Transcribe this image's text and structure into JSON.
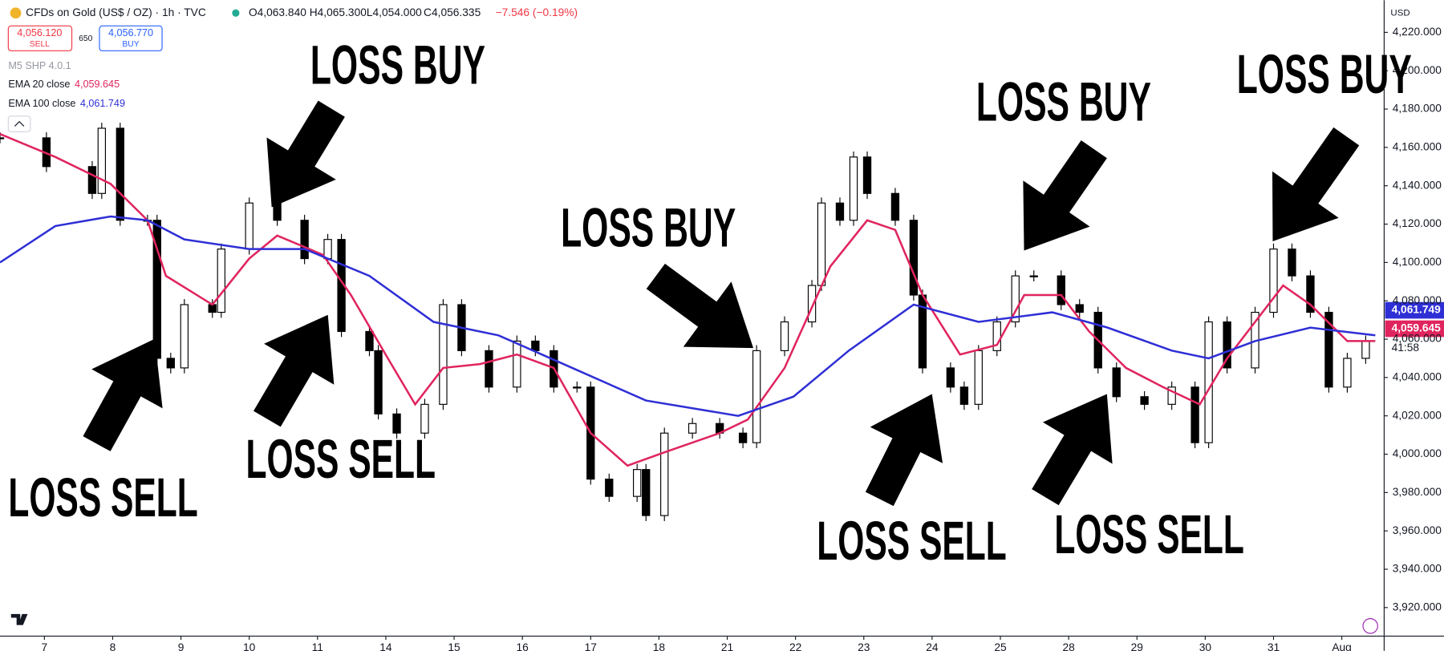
{
  "header": {
    "symbol": "CFDs on Gold (US$ / OZ) · 1h · TVC",
    "open": "O4,063.840",
    "high": "H4,065.300",
    "low": "L4,054.000",
    "close": "C4,056.335",
    "change": "−7.546 (−0.19%)"
  },
  "trade": {
    "sell_price": "4,056.120",
    "sell": "SELL",
    "spread": "650",
    "buy_price": "4,056.770",
    "buy": "BUY"
  },
  "indicator": "M5 SHP 4.0.1",
  "chart_data": {
    "type": "candlestick",
    "x": [
      -0.65,
      0.03,
      0.7,
      0.84,
      1.11,
      1.51,
      1.65,
      1.85,
      2.05,
      2.46,
      2.59,
      3.0,
      3.41,
      3.81,
      4.15,
      4.35,
      4.76,
      4.89,
      5.16,
      5.57,
      5.84,
      6.11,
      6.51,
      6.92,
      7.19,
      7.46,
      7.8,
      8.0,
      8.27,
      8.68,
      8.81,
      9.08,
      9.49,
      9.89,
      10.23,
      10.43,
      10.84,
      11.24,
      11.38,
      11.65,
      11.85,
      12.05,
      12.46,
      12.73,
      12.86,
      13.27,
      13.47,
      13.68,
      13.95,
      14.22,
      14.49,
      14.89,
      15.16,
      15.43,
      15.7,
      16.11,
      16.51,
      16.85,
      17.05,
      17.32,
      17.73,
      18.0,
      18.27,
      18.54,
      18.81,
      19.08,
      19.35
    ],
    "close": [
      4165,
      4150,
      4136,
      4170,
      4122,
      4122,
      4050,
      4045,
      4078,
      4074,
      4107,
      4131,
      4122,
      4102,
      4112,
      4064,
      4054,
      4021,
      4011,
      4026,
      4078,
      4054,
      4035,
      4059,
      4054,
      4035,
      4035,
      3987,
      3978,
      3992,
      3968,
      4011,
      4016,
      4011,
      4006,
      4054,
      4069,
      4088,
      4131,
      4122,
      4155,
      4136,
      4122,
      4083,
      4045,
      4035,
      4026,
      4054,
      4069,
      4093,
      4093,
      4078,
      4074,
      4045,
      4030,
      4026,
      4035,
      4006,
      4069,
      4045,
      4074,
      4107,
      4093,
      4074,
      4035,
      4050,
      4059
    ],
    "series": [
      {
        "name": "EMA 20 close",
        "color": "#e0245e",
        "last_label": "4,059.645",
        "x": [
          -0.65,
          0.16,
          0.97,
          1.51,
          1.78,
          2.46,
          3.0,
          3.41,
          4.08,
          4.49,
          5.03,
          5.43,
          5.84,
          6.38,
          6.92,
          7.46,
          8.0,
          8.54,
          9.08,
          9.89,
          10.3,
          10.84,
          11.51,
          12.05,
          12.46,
          12.86,
          13.41,
          13.95,
          14.35,
          14.89,
          15.3,
          15.84,
          16.38,
          16.92,
          17.32,
          17.73,
          18.14,
          18.54,
          19.08,
          19.49
        ],
        "values": [
          4167,
          4155,
          4141,
          4122,
          4093,
          4078,
          4102,
          4114,
          4104,
          4083,
          4050,
          4026,
          4045,
          4047,
          4052,
          4045,
          4011,
          3994,
          4001,
          4011,
          4018,
          4045,
          4098,
          4122,
          4117,
          4083,
          4052,
          4057,
          4083,
          4083,
          4064,
          4045,
          4035,
          4026,
          4050,
          4069,
          4088,
          4078,
          4059,
          4059
        ]
      },
      {
        "name": "EMA 100 close",
        "color": "#2f2fd6",
        "last_label": "4,061.749",
        "x": [
          -0.65,
          0.16,
          0.97,
          1.51,
          2.05,
          3.0,
          3.81,
          4.76,
          5.7,
          6.65,
          7.73,
          8.81,
          10.16,
          10.97,
          11.78,
          12.73,
          13.68,
          14.76,
          15.57,
          16.51,
          17.05,
          17.73,
          18.54,
          19.49
        ],
        "values": [
          4100,
          4119,
          4124,
          4122,
          4112,
          4107,
          4107,
          4093,
          4069,
          4062,
          4045,
          4028,
          4020,
          4030,
          4054,
          4078,
          4069,
          4074,
          4066,
          4054,
          4050,
          4059,
          4066,
          4062
        ]
      }
    ],
    "xlim": [
      -0.65,
      19.62
    ],
    "xticks": [
      {
        "value": 0,
        "label": "7"
      },
      {
        "value": 1,
        "label": "8"
      },
      {
        "value": 2,
        "label": "9"
      },
      {
        "value": 3,
        "label": "10"
      },
      {
        "value": 4,
        "label": "11"
      },
      {
        "value": 5,
        "label": "14"
      },
      {
        "value": 6,
        "label": "15"
      },
      {
        "value": 7,
        "label": "16"
      },
      {
        "value": 8,
        "label": "17"
      },
      {
        "value": 9,
        "label": "18"
      },
      {
        "value": 10,
        "label": "21"
      },
      {
        "value": 11,
        "label": "22"
      },
      {
        "value": 12,
        "label": "23"
      },
      {
        "value": 13,
        "label": "24"
      },
      {
        "value": 14,
        "label": "25"
      },
      {
        "value": 15,
        "label": "28"
      },
      {
        "value": 16,
        "label": "29"
      },
      {
        "value": 17,
        "label": "30"
      },
      {
        "value": 18,
        "label": "31"
      },
      {
        "value": 19,
        "label": "Aug"
      }
    ],
    "ylim": [
      3905.6,
      4236.8
    ],
    "yticks": [
      {
        "value": 3920,
        "label": "3,920.000"
      },
      {
        "value": 3940,
        "label": "3,940.000"
      },
      {
        "value": 3960,
        "label": "3,960.000"
      },
      {
        "value": 3980,
        "label": "3,980.000"
      },
      {
        "value": 4000,
        "label": "4,000.000"
      },
      {
        "value": 4020,
        "label": "4,020.000"
      },
      {
        "value": 4040,
        "label": "4,040.000"
      },
      {
        "value": 4060,
        "label": "4,060.000"
      },
      {
        "value": 4080,
        "label": "4,080.000"
      },
      {
        "value": 4100,
        "label": "4,100.000"
      },
      {
        "value": 4120,
        "label": "4,120.000"
      },
      {
        "value": 4140,
        "label": "4,140.000"
      },
      {
        "value": 4160,
        "label": "4,160.000"
      },
      {
        "value": 4180,
        "label": "4,180.000"
      },
      {
        "value": 4200,
        "label": "4,200.000"
      },
      {
        "value": 4220,
        "label": "4,220.000"
      }
    ],
    "currency": "USD",
    "countdown": "41:58",
    "annotations": [
      "LOSS BUY",
      "LOSS SELL",
      "LOSS SELL",
      "LOSS BUY",
      "LOSS BUY",
      "LOSS SELL",
      "LOSS SELL",
      "LOSS BUY"
    ]
  }
}
